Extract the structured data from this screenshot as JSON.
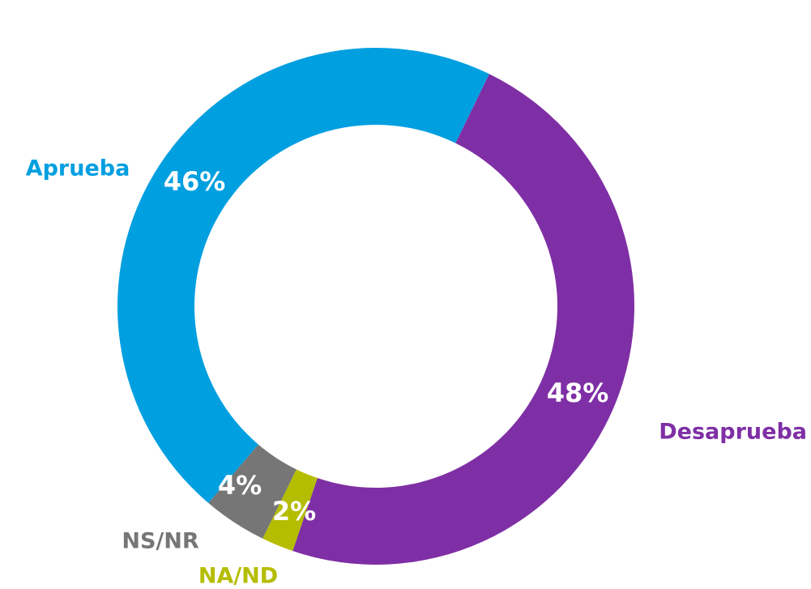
{
  "chart_data": {
    "type": "pie",
    "subtype": "donut",
    "slices": [
      {
        "name": "Desaprueba",
        "value": 48,
        "value_label": "48%",
        "color": "#7f2fa5"
      },
      {
        "name": "NA/ND",
        "value": 2,
        "value_label": "2%",
        "color": "#b5bd00"
      },
      {
        "name": "NS/NR",
        "value": 4,
        "value_label": "4%",
        "color": "#767676"
      },
      {
        "name": "Aprueba",
        "value": 46,
        "value_label": "46%",
        "color": "#009fe0"
      }
    ],
    "legend": "none"
  }
}
